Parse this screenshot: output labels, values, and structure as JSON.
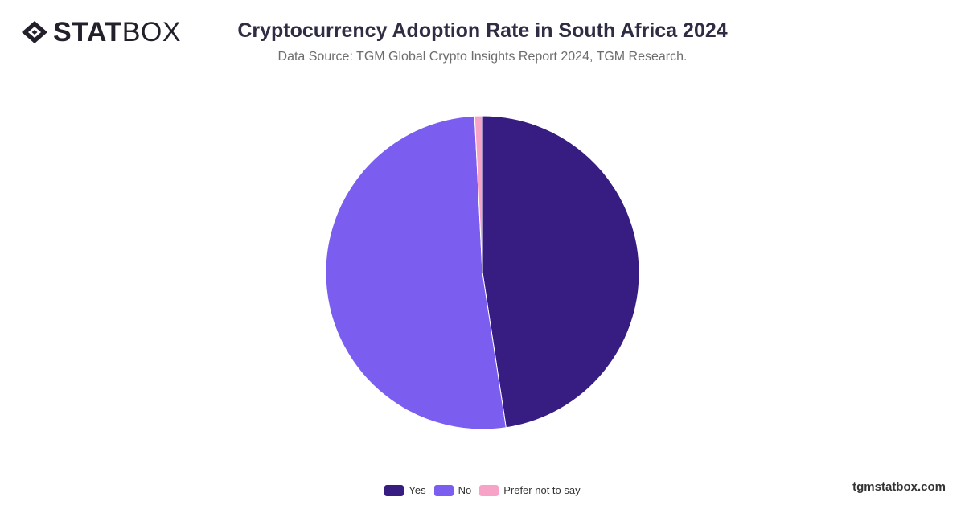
{
  "brand": {
    "logo_bold": "STAT",
    "logo_light": "BOX",
    "url": "tgmstatbox.com"
  },
  "header": {
    "title": "Cryptocurrency Adoption Rate in South Africa 2024",
    "subtitle": "Data Source: TGM Global Crypto Insights Report 2024, TGM Research."
  },
  "chart_data": {
    "type": "pie",
    "title": "Cryptocurrency Adoption Rate in South Africa 2024",
    "categories": [
      "Yes",
      "No",
      "Prefer not to say"
    ],
    "values": [
      47.6,
      51.6,
      0.8
    ],
    "colors": [
      "#371c82",
      "#7b5def",
      "#f7a3c7"
    ],
    "legend_position": "bottom",
    "start_angle": "top",
    "direction": "clockwise"
  }
}
